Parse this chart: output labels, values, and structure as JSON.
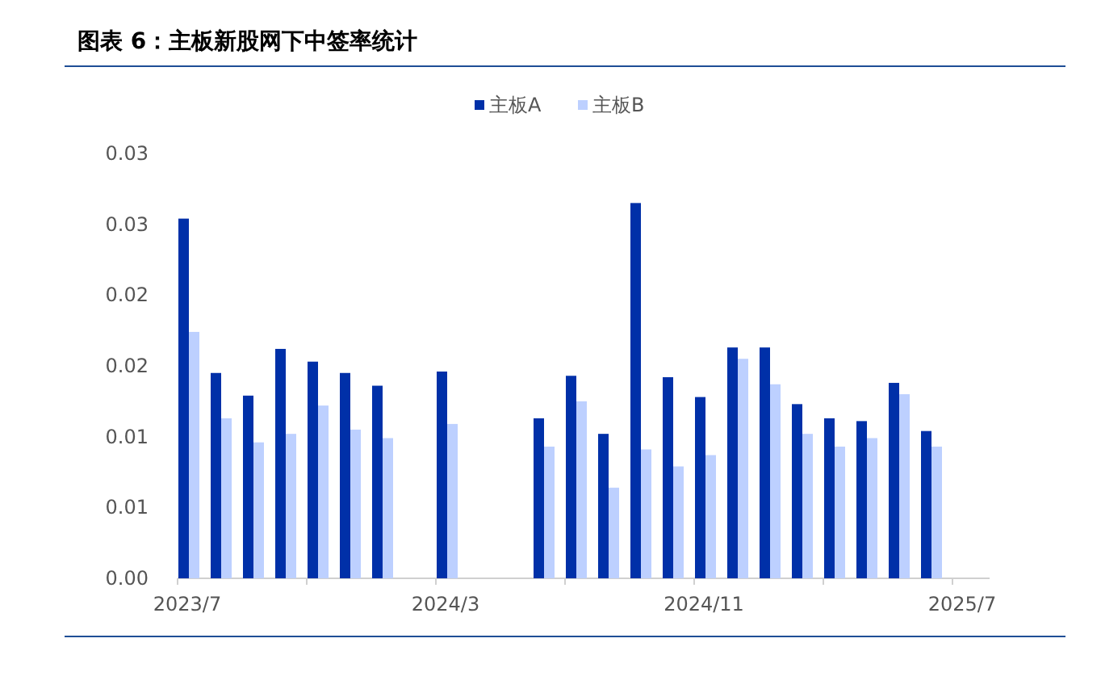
{
  "chart_data": {
    "type": "bar",
    "title": "图表 6：主板新股网下中签率统计",
    "categories": [
      "2023/7",
      null,
      null,
      null,
      null,
      null,
      null,
      null,
      "2024/3",
      null,
      null,
      null,
      null,
      null,
      null,
      null,
      "2024/11",
      null,
      null,
      null,
      null,
      null,
      null,
      null,
      "2025/7"
    ],
    "series": [
      {
        "name": "主板A",
        "color": "#0030a8",
        "values": [
          0.0254,
          0.0145,
          0.0129,
          0.0162,
          0.0153,
          0.0145,
          0.0136,
          null,
          0.0146,
          null,
          null,
          0.0113,
          0.0143,
          0.0102,
          0.0265,
          0.0142,
          0.0128,
          0.0163,
          0.0163,
          0.0123,
          0.0113,
          0.0111,
          0.0138,
          0.0104,
          null
        ]
      },
      {
        "name": "主板B",
        "color": "#bdd0ff",
        "values": [
          0.0174,
          0.0113,
          0.0096,
          0.0102,
          0.0122,
          0.0105,
          0.0099,
          null,
          0.0109,
          null,
          null,
          0.0093,
          0.0125,
          0.0064,
          0.0091,
          0.0079,
          0.0087,
          0.0155,
          0.0137,
          0.0102,
          0.0093,
          0.0099,
          0.013,
          0.0093,
          null
        ]
      }
    ],
    "ylim": [
      0,
      0.03
    ],
    "yticks": [
      {
        "value": 0,
        "label": "0.00"
      },
      {
        "value": 0.005,
        "label": "0.01"
      },
      {
        "value": 0.01,
        "label": "0.01"
      },
      {
        "value": 0.015,
        "label": "0.02"
      },
      {
        "value": 0.02,
        "label": "0.02"
      },
      {
        "value": 0.025,
        "label": "0.03"
      },
      {
        "value": 0.03,
        "label": "0.03"
      }
    ],
    "grid": false,
    "legend": "top"
  }
}
